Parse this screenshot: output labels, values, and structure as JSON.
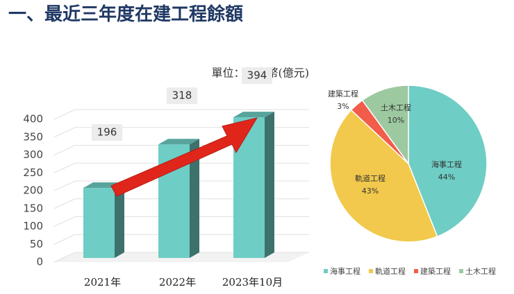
{
  "title": "一、最近三年度在建工程餘額",
  "chart_data": [
    {
      "type": "bar",
      "subtitle": "單位：新台幣(億元)",
      "categories": [
        "2021年",
        "2022年",
        "2023年10月"
      ],
      "values": [
        196,
        318,
        394
      ],
      "color": "#6ecdc4",
      "ylim": [
        0,
        400
      ],
      "yticks": [
        0,
        50,
        100,
        150,
        200,
        250,
        300,
        350,
        400
      ],
      "grid": true
    },
    {
      "type": "pie",
      "categories": [
        "海事工程",
        "軌道工程",
        "建築工程",
        "土木工程"
      ],
      "values": [
        44,
        43,
        3,
        10
      ],
      "value_labels": [
        "44%",
        "43%",
        "3%",
        "10%"
      ],
      "colors": [
        "#6ecdc4",
        "#f2c94c",
        "#f25c4b",
        "#9dc9a0"
      ],
      "legend": "bottom"
    }
  ]
}
